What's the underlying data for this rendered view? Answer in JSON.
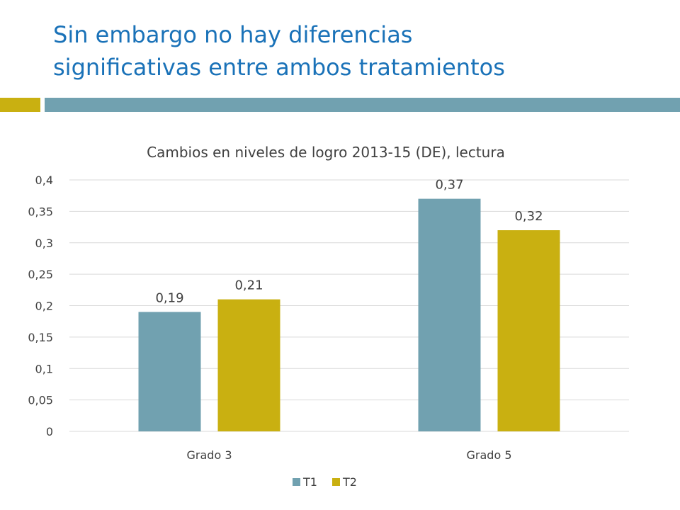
{
  "slide": {
    "title_line1": "Sin embargo no hay diferencias",
    "title_line2": "significativas entre ambos tratamientos"
  },
  "colors": {
    "title": "#1a72b8",
    "accent_gold": "#c9b011",
    "accent_teal": "#71a1b0",
    "gridline": "#d9d9d9",
    "text": "#404040"
  },
  "chart_data": {
    "type": "bar",
    "title": "Cambios en niveles de logro 2013-15 (DE), lectura",
    "categories": [
      "Grado 3",
      "Grado 5"
    ],
    "series": [
      {
        "name": "T1",
        "values": [
          0.19,
          0.37
        ],
        "labels": [
          "0,19",
          "0,37"
        ],
        "color": "#71a1b0"
      },
      {
        "name": "T2",
        "values": [
          0.21,
          0.32
        ],
        "labels": [
          "0,21",
          "0,32"
        ],
        "color": "#c9b011"
      }
    ],
    "ylim": [
      0,
      0.4
    ],
    "yticks": [
      0,
      0.05,
      0.1,
      0.15,
      0.2,
      0.25,
      0.3,
      0.35,
      0.4
    ],
    "ytick_labels": [
      "0",
      "0,05",
      "0,1",
      "0,15",
      "0,2",
      "0,25",
      "0,3",
      "0,35",
      "0,4"
    ],
    "grid": true,
    "legend": "bottom",
    "xlabel": "",
    "ylabel": ""
  }
}
